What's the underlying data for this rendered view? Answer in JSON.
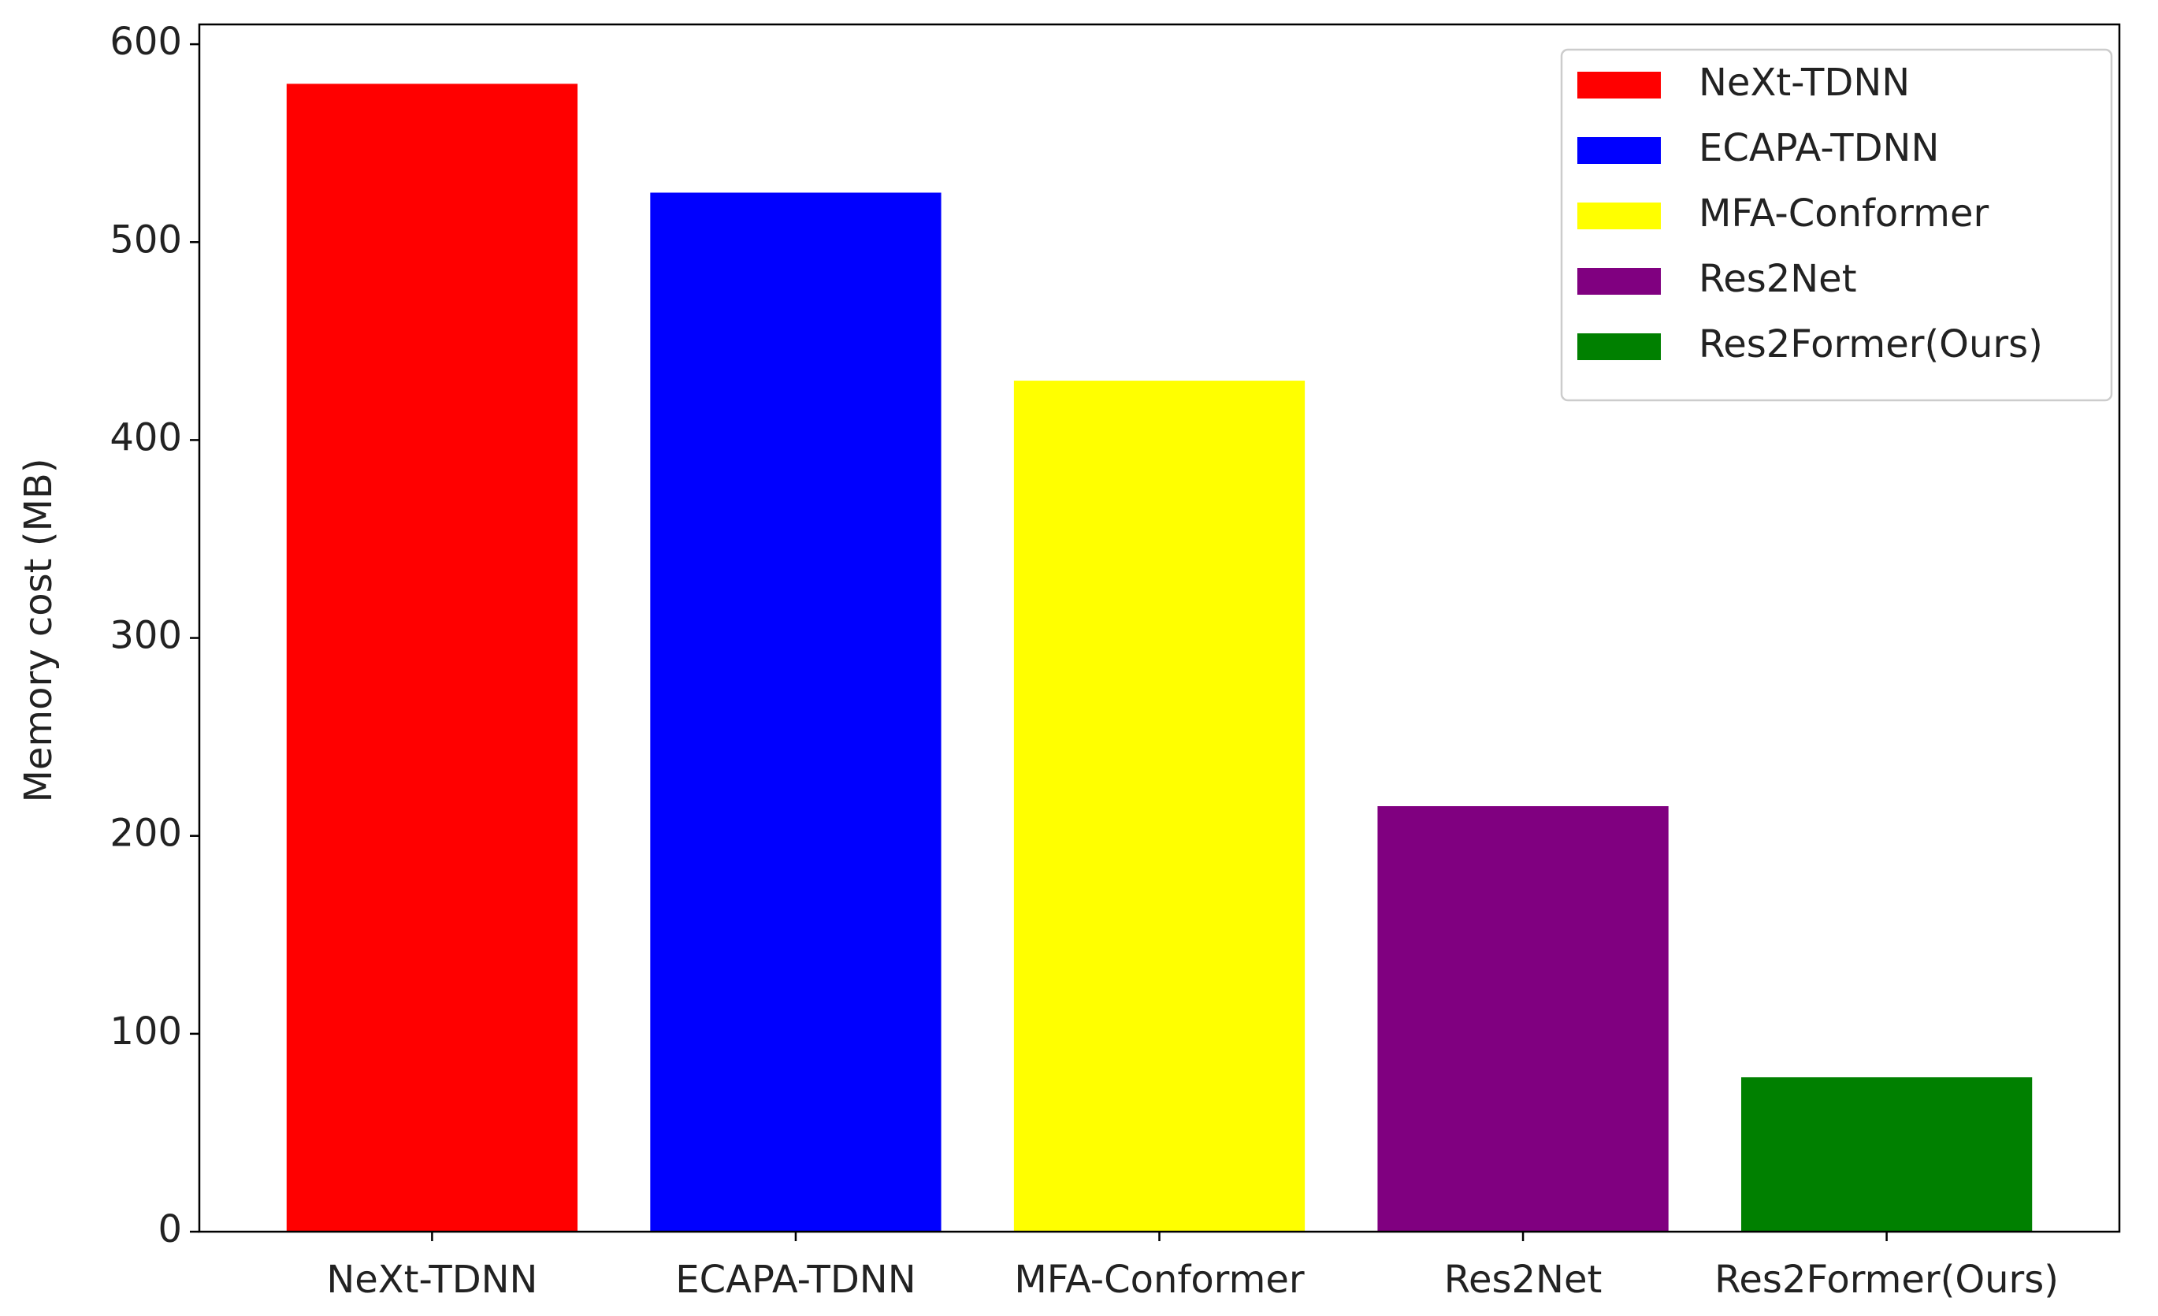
{
  "chart_data": {
    "type": "bar",
    "y_label": "Memory cost (MB)",
    "categories": [
      "NeXt-TDNN",
      "ECAPA-TDNN",
      "MFA-Conformer",
      "Res2Net",
      "Res2Former(Ours)"
    ],
    "values": [
      580,
      525,
      430,
      215,
      78
    ],
    "colors": [
      "#ff0000",
      "#0000ff",
      "#ffff00",
      "#800080",
      "#008000"
    ],
    "ylim": [
      0,
      610
    ],
    "yticks": [
      0,
      100,
      200,
      300,
      400,
      500,
      600
    ],
    "grid": false,
    "legend": "upper right"
  }
}
